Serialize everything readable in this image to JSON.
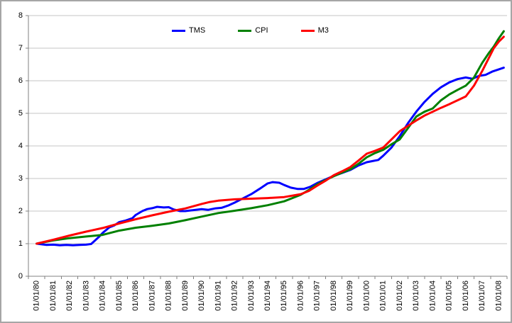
{
  "window": {
    "background": "#ffffff",
    "border_color": "#a6a6a6"
  },
  "chart_data": {
    "type": "line",
    "title": "",
    "xlabel": "",
    "ylabel": "",
    "ylim": [
      0,
      8
    ],
    "ytick_labels": [
      "0",
      "1",
      "2",
      "3",
      "4",
      "5",
      "6",
      "7",
      "8"
    ],
    "x_start_year": 1980,
    "x_labels": [
      "01/01/80",
      "01/01/81",
      "01/01/82",
      "01/01/83",
      "01/01/84",
      "01/01/85",
      "01/01/86",
      "01/01/87",
      "01/01/88",
      "01/01/89",
      "01/01/90",
      "01/01/91",
      "01/01/92",
      "01/01/93",
      "01/01/94",
      "01/01/95",
      "01/01/96",
      "01/01/97",
      "01/01/98",
      "01/01/99",
      "01/01/00",
      "01/01/01",
      "01/01/02",
      "01/01/03",
      "01/01/04",
      "01/01/05",
      "01/01/06",
      "01/01/07",
      "01/01/08"
    ],
    "grid": true,
    "legend_position": "top-center",
    "colors": {
      "grid": "#c6c6c6",
      "axis": "#808080",
      "text": "#000000"
    },
    "series": [
      {
        "name": "TMS",
        "color": "#0000ff",
        "points": [
          [
            1980,
            1.0
          ],
          [
            1980.3,
            0.98
          ],
          [
            1980.6,
            0.96
          ],
          [
            1981,
            0.97
          ],
          [
            1981.4,
            0.95
          ],
          [
            1981.8,
            0.96
          ],
          [
            1982.2,
            0.95
          ],
          [
            1982.6,
            0.96
          ],
          [
            1983,
            0.97
          ],
          [
            1983.3,
            0.99
          ],
          [
            1983.5,
            1.08
          ],
          [
            1983.8,
            1.22
          ],
          [
            1984,
            1.33
          ],
          [
            1984.4,
            1.5
          ],
          [
            1984.7,
            1.56
          ],
          [
            1985,
            1.66
          ],
          [
            1985.4,
            1.71
          ],
          [
            1985.8,
            1.78
          ],
          [
            1986,
            1.88
          ],
          [
            1986.4,
            2.0
          ],
          [
            1986.7,
            2.06
          ],
          [
            1987,
            2.09
          ],
          [
            1987.3,
            2.13
          ],
          [
            1987.7,
            2.11
          ],
          [
            1988,
            2.12
          ],
          [
            1988.3,
            2.05
          ],
          [
            1988.7,
            2.0
          ],
          [
            1989,
            2.0
          ],
          [
            1989.5,
            2.03
          ],
          [
            1990,
            2.06
          ],
          [
            1990.4,
            2.04
          ],
          [
            1990.8,
            2.08
          ],
          [
            1991.2,
            2.1
          ],
          [
            1991.6,
            2.17
          ],
          [
            1992,
            2.26
          ],
          [
            1992.5,
            2.39
          ],
          [
            1993,
            2.52
          ],
          [
            1993.5,
            2.68
          ],
          [
            1994,
            2.85
          ],
          [
            1994.3,
            2.89
          ],
          [
            1994.7,
            2.87
          ],
          [
            1995,
            2.8
          ],
          [
            1995.4,
            2.72
          ],
          [
            1995.8,
            2.68
          ],
          [
            1996.2,
            2.68
          ],
          [
            1996.6,
            2.75
          ],
          [
            1997,
            2.86
          ],
          [
            1997.5,
            2.97
          ],
          [
            1998,
            3.08
          ],
          [
            1998.5,
            3.17
          ],
          [
            1999,
            3.26
          ],
          [
            1999.5,
            3.4
          ],
          [
            2000,
            3.5
          ],
          [
            2000.3,
            3.53
          ],
          [
            2000.7,
            3.57
          ],
          [
            2001,
            3.7
          ],
          [
            2001.5,
            3.95
          ],
          [
            2002,
            4.3
          ],
          [
            2002.5,
            4.7
          ],
          [
            2003,
            5.05
          ],
          [
            2003.5,
            5.35
          ],
          [
            2004,
            5.6
          ],
          [
            2004.5,
            5.8
          ],
          [
            2005,
            5.95
          ],
          [
            2005.5,
            6.05
          ],
          [
            2006,
            6.1
          ],
          [
            2006.4,
            6.06
          ],
          [
            2006.8,
            6.15
          ],
          [
            2007.2,
            6.18
          ],
          [
            2007.6,
            6.28
          ],
          [
            2008,
            6.35
          ],
          [
            2008.3,
            6.4
          ]
        ]
      },
      {
        "name": "CPI",
        "color": "#008000",
        "points": [
          [
            1980,
            1.0
          ],
          [
            1981,
            1.1
          ],
          [
            1982,
            1.17
          ],
          [
            1983,
            1.22
          ],
          [
            1984,
            1.27
          ],
          [
            1985,
            1.4
          ],
          [
            1986,
            1.49
          ],
          [
            1987,
            1.55
          ],
          [
            1988,
            1.62
          ],
          [
            1989,
            1.72
          ],
          [
            1990,
            1.83
          ],
          [
            1991,
            1.94
          ],
          [
            1992,
            2.01
          ],
          [
            1993,
            2.09
          ],
          [
            1994,
            2.18
          ],
          [
            1995,
            2.3
          ],
          [
            1996,
            2.5
          ],
          [
            1996.5,
            2.65
          ],
          [
            1997,
            2.82
          ],
          [
            1997.5,
            2.95
          ],
          [
            1998,
            3.07
          ],
          [
            1998.5,
            3.18
          ],
          [
            1999,
            3.28
          ],
          [
            1999.5,
            3.45
          ],
          [
            2000,
            3.65
          ],
          [
            2000.5,
            3.78
          ],
          [
            2001,
            3.88
          ],
          [
            2001.5,
            4.05
          ],
          [
            2002,
            4.2
          ],
          [
            2002.5,
            4.55
          ],
          [
            2003,
            4.9
          ],
          [
            2003.5,
            5.05
          ],
          [
            2004,
            5.15
          ],
          [
            2004.5,
            5.4
          ],
          [
            2005,
            5.58
          ],
          [
            2005.5,
            5.72
          ],
          [
            2006,
            5.85
          ],
          [
            2006.5,
            6.1
          ],
          [
            2007,
            6.55
          ],
          [
            2007.4,
            6.85
          ],
          [
            2007.7,
            7.05
          ],
          [
            2008,
            7.3
          ],
          [
            2008.3,
            7.52
          ]
        ]
      },
      {
        "name": "M3",
        "color": "#ff0000",
        "points": [
          [
            1980,
            1.0
          ],
          [
            1981,
            1.12
          ],
          [
            1982,
            1.25
          ],
          [
            1983,
            1.37
          ],
          [
            1984,
            1.48
          ],
          [
            1985,
            1.62
          ],
          [
            1986,
            1.75
          ],
          [
            1987,
            1.87
          ],
          [
            1988,
            1.98
          ],
          [
            1989,
            2.08
          ],
          [
            1990,
            2.22
          ],
          [
            1990.5,
            2.28
          ],
          [
            1991,
            2.32
          ],
          [
            1992,
            2.36
          ],
          [
            1993,
            2.38
          ],
          [
            1994,
            2.4
          ],
          [
            1995,
            2.43
          ],
          [
            1996,
            2.52
          ],
          [
            1996.5,
            2.62
          ],
          [
            1997,
            2.78
          ],
          [
            1997.5,
            2.93
          ],
          [
            1998,
            3.1
          ],
          [
            1998.5,
            3.22
          ],
          [
            1999,
            3.35
          ],
          [
            1999.5,
            3.55
          ],
          [
            2000,
            3.76
          ],
          [
            2000.5,
            3.85
          ],
          [
            2001,
            3.95
          ],
          [
            2001.5,
            4.2
          ],
          [
            2002,
            4.45
          ],
          [
            2002.5,
            4.62
          ],
          [
            2003,
            4.78
          ],
          [
            2003.5,
            4.93
          ],
          [
            2004,
            5.05
          ],
          [
            2004.5,
            5.17
          ],
          [
            2005,
            5.28
          ],
          [
            2005.5,
            5.4
          ],
          [
            2006,
            5.52
          ],
          [
            2006.5,
            5.85
          ],
          [
            2007,
            6.3
          ],
          [
            2007.4,
            6.7
          ],
          [
            2007.7,
            7.0
          ],
          [
            2008,
            7.2
          ],
          [
            2008.3,
            7.35
          ]
        ]
      }
    ]
  }
}
